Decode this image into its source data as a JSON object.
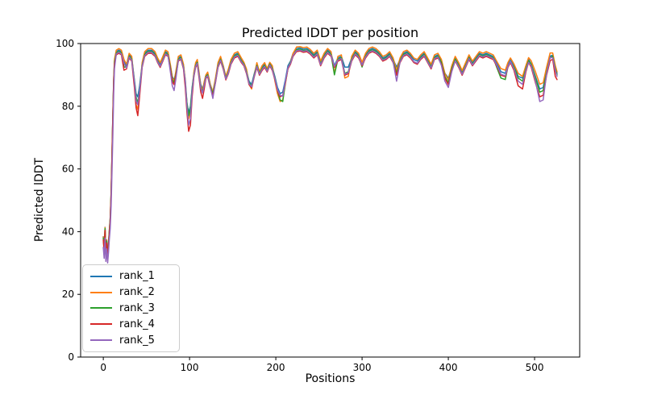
{
  "figure": {
    "title": "Predicted lDDT per position",
    "background_color": "#ffffff"
  },
  "chart_data": {
    "type": "line",
    "title": "Predicted lDDT per position",
    "xlabel": "Positions",
    "ylabel": "Predicted lDDT",
    "xlim": [
      -26.3,
      552.3
    ],
    "ylim": [
      0,
      100
    ],
    "xticks": [
      0,
      100,
      200,
      300,
      400,
      500
    ],
    "yticks": [
      0,
      20,
      40,
      60,
      80,
      100
    ],
    "grid": false,
    "legend_position": "lower left",
    "x": [
      0,
      1,
      2,
      3,
      4,
      5,
      6,
      7,
      8,
      9,
      10,
      11,
      12,
      13,
      15,
      18,
      21,
      24,
      27,
      30,
      33,
      36,
      38,
      40,
      42,
      45,
      48,
      52,
      56,
      60,
      63,
      66,
      69,
      72,
      75,
      78,
      80,
      82,
      84,
      87,
      90,
      93,
      95,
      97,
      99,
      101,
      103,
      105,
      107,
      109,
      111,
      113,
      115,
      117,
      119,
      121,
      124,
      127,
      130,
      133,
      136,
      139,
      142,
      145,
      148,
      152,
      156,
      160,
      163,
      166,
      169,
      172,
      175,
      178,
      181,
      184,
      187,
      190,
      193,
      196,
      199,
      202,
      205,
      208,
      211,
      214,
      217,
      220,
      224,
      228,
      232,
      236,
      240,
      244,
      248,
      252,
      256,
      260,
      264,
      268,
      272,
      276,
      280,
      284,
      288,
      292,
      296,
      300,
      304,
      308,
      312,
      316,
      320,
      324,
      328,
      332,
      336,
      340,
      344,
      348,
      352,
      356,
      360,
      364,
      368,
      372,
      376,
      380,
      384,
      388,
      392,
      396,
      400,
      404,
      408,
      412,
      416,
      420,
      424,
      428,
      432,
      436,
      440,
      444,
      448,
      452,
      456,
      461,
      466,
      469,
      472,
      476,
      481,
      486,
      490,
      493,
      496,
      501,
      506,
      510,
      514,
      518,
      521,
      524,
      526
    ],
    "series": [
      {
        "name": "rank_1",
        "color": "#1f77b4",
        "values": [
          38.4,
          34.4,
          41.4,
          33.4,
          37.4,
          32.4,
          36.4,
          40.4,
          44.4,
          52.4,
          63.4,
          76.4,
          88.4,
          94.4,
          97.4,
          97.9,
          97.4,
          94.4,
          92.9,
          96.4,
          95.4,
          88.4,
          84,
          83,
          86.4,
          93.4,
          96.9,
          97.9,
          97.9,
          96.9,
          94.9,
          93.4,
          95.4,
          97.4,
          96.9,
          92.4,
          89.4,
          88.4,
          90.4,
          95.4,
          95.9,
          92.9,
          88.5,
          81,
          78,
          80,
          86,
          90.5,
          93.4,
          94.4,
          90.4,
          87,
          85.5,
          87.4,
          89.9,
          90.4,
          87,
          84.5,
          88.4,
          93.4,
          95.4,
          92.9,
          89.4,
          91.4,
          94.4,
          96.4,
          96.9,
          94.9,
          93.9,
          91.4,
          88,
          87,
          90.4,
          93.4,
          90.9,
          92.4,
          93.4,
          91.9,
          93.9,
          92.4,
          89.4,
          86,
          84,
          84.5,
          88.4,
          92.9,
          94.4,
          96.9,
          98.4,
          98.6,
          98.2,
          98.4,
          97.6,
          96.4,
          97.4,
          93.9,
          96.4,
          97.9,
          96.9,
          92.9,
          95.4,
          95.9,
          92.5,
          92.5,
          95.4,
          97.4,
          96.4,
          93.9,
          96.4,
          97.9,
          98.4,
          97.9,
          96.9,
          95.4,
          95.9,
          96.9,
          94.9,
          92.5,
          94.9,
          96.9,
          97.4,
          96.4,
          94.9,
          94.4,
          95.9,
          96.9,
          94.9,
          92.9,
          95.9,
          96.4,
          94.4,
          90.5,
          89,
          92.4,
          95.4,
          93.4,
          90.9,
          93.4,
          95.9,
          93.9,
          95.4,
          96.9,
          96.4,
          96.9,
          96.4,
          95.9,
          93.9,
          91,
          90.5,
          93.4,
          94.9,
          93,
          89.5,
          89,
          92.5,
          95,
          93.5,
          89.5,
          85.5,
          86,
          91.5,
          96,
          96.3,
          92.5,
          90.5
        ]
      },
      {
        "name": "rank_2",
        "color": "#ff7f0e",
        "values": [
          38.3,
          34.3,
          41.3,
          33.3,
          37.3,
          32.3,
          36.3,
          40.3,
          44.3,
          52.3,
          63.5,
          76.5,
          88.5,
          94.9,
          97.9,
          98.4,
          97.9,
          94.9,
          93.4,
          96.9,
          95.9,
          87.5,
          80.5,
          79,
          84,
          93.9,
          97.4,
          98.4,
          98.4,
          97.4,
          95.4,
          93.9,
          95.9,
          97.9,
          97.4,
          92.9,
          89,
          88,
          90.9,
          95.9,
          96.4,
          93.4,
          88,
          80.5,
          76,
          78,
          85,
          90.9,
          93.9,
          94.9,
          90.9,
          86.5,
          85,
          87.9,
          90,
          90.9,
          87,
          84.5,
          88.9,
          93.9,
          95.9,
          93,
          89.5,
          91.9,
          94.9,
          96.9,
          97.4,
          95.4,
          94,
          91.9,
          87,
          85.5,
          90,
          93.9,
          91,
          92.9,
          93.9,
          92,
          94,
          92.9,
          88,
          84,
          81.5,
          82,
          87,
          92,
          94,
          96.9,
          98.9,
          99,
          98.7,
          98.9,
          98.1,
          96.9,
          97.9,
          94.4,
          96.9,
          98.4,
          97.4,
          90.5,
          95.9,
          96.4,
          89,
          89.5,
          95.9,
          97.9,
          96.9,
          94,
          96.9,
          98.4,
          98.9,
          98.4,
          97.4,
          95.9,
          96.4,
          97.4,
          95.4,
          91.4,
          95.4,
          97.4,
          97.9,
          96.9,
          95.4,
          94.9,
          96.4,
          97.4,
          95.4,
          93.4,
          96.4,
          96.9,
          94.9,
          90.4,
          88.4,
          92.9,
          95.9,
          93.9,
          91.4,
          93.9,
          96.4,
          94.4,
          95.9,
          97.4,
          96.9,
          97.4,
          96.9,
          96.4,
          94.4,
          92,
          91.5,
          93.9,
          95.4,
          93.5,
          90.5,
          89.5,
          93,
          95.5,
          94.5,
          91,
          87,
          87.5,
          92.5,
          97,
          97,
          93,
          91
        ]
      },
      {
        "name": "rank_3",
        "color": "#2ca02c",
        "values": [
          38,
          34,
          41,
          33,
          37,
          32,
          36,
          40,
          44,
          52,
          63,
          76,
          88,
          94,
          97,
          97.5,
          97,
          92.5,
          92.5,
          96,
          95,
          88,
          83,
          81,
          85,
          93,
          96.5,
          97.5,
          97.5,
          96.5,
          94.5,
          92.5,
          95,
          97,
          96.5,
          92,
          88.5,
          87.5,
          90,
          95,
          95.5,
          92.5,
          87,
          81,
          77,
          79,
          85.5,
          90,
          93,
          94,
          90,
          86,
          84.5,
          87,
          89.5,
          90,
          86.5,
          84,
          88,
          93,
          95,
          92.5,
          89,
          91,
          94,
          96,
          96.5,
          94.5,
          93.5,
          91,
          87.5,
          86.5,
          90,
          93,
          90.5,
          92,
          93,
          91.5,
          93.5,
          92,
          89,
          85,
          82,
          81.5,
          87.5,
          92,
          94,
          96,
          98,
          98.2,
          97.8,
          98,
          97.2,
          96,
          97,
          93.5,
          96,
          97.5,
          96.5,
          90,
          95,
          95.5,
          90.5,
          91,
          95,
          97,
          96,
          92.5,
          96,
          97.5,
          98,
          97.5,
          96.5,
          95,
          95.5,
          96.5,
          94.5,
          90.5,
          94.5,
          96.5,
          97,
          96,
          94,
          93.5,
          95.5,
          96.5,
          94.5,
          92.5,
          95.5,
          96,
          94,
          89.5,
          87.5,
          92,
          95,
          93,
          90.5,
          93,
          95.5,
          93.5,
          95,
          96.5,
          96,
          96.5,
          96,
          95.5,
          92.5,
          89,
          88.5,
          92.5,
          94,
          92.5,
          89,
          88,
          92,
          94.5,
          93.5,
          89,
          84.5,
          85,
          91,
          95.5,
          96,
          92,
          90
        ]
      },
      {
        "name": "rank_4",
        "color": "#d62728",
        "values": [
          37.4,
          33.4,
          40.4,
          32.4,
          36.4,
          31.4,
          35.4,
          39.4,
          43.4,
          51.4,
          62.4,
          75.4,
          87.4,
          93.4,
          96.4,
          96.9,
          96.4,
          91.5,
          91.9,
          95.4,
          94.4,
          86,
          79.5,
          77,
          83,
          92.4,
          95.9,
          96.9,
          96.9,
          95.9,
          93.9,
          92.4,
          94.4,
          96.4,
          95.9,
          91.4,
          87.9,
          86.9,
          89.4,
          94.4,
          94.9,
          91.9,
          86,
          78,
          72,
          74,
          83,
          89.4,
          92.4,
          93.4,
          89,
          84.5,
          82.5,
          85.5,
          88.9,
          89.4,
          85.9,
          83.4,
          87.4,
          92.4,
          94.4,
          91.9,
          88.4,
          90.4,
          93.4,
          95.4,
          95.9,
          93.9,
          92.9,
          90.4,
          86.9,
          85.9,
          89.4,
          92.4,
          89.9,
          91.4,
          92.4,
          90.9,
          92.9,
          91.4,
          88.4,
          84.9,
          83,
          83.5,
          87.4,
          91.9,
          93.4,
          95.9,
          97.4,
          97.6,
          97.2,
          97.4,
          96.6,
          95.4,
          96.4,
          92.9,
          95.4,
          96.9,
          95.9,
          92.4,
          94.4,
          94.9,
          89.9,
          90.4,
          94.4,
          96.4,
          95.4,
          92.9,
          95.4,
          96.9,
          97.4,
          96.9,
          95.9,
          94.4,
          94.9,
          95.9,
          93.9,
          89.9,
          93.9,
          95.9,
          96.4,
          95.4,
          93.9,
          93.4,
          94.9,
          95.9,
          93.9,
          91.9,
          94.9,
          95.4,
          93.4,
          88.9,
          86.9,
          91.4,
          94.4,
          92.4,
          89.9,
          92.4,
          94.9,
          92.9,
          94.4,
          95.9,
          95.4,
          95.9,
          95.4,
          94.9,
          92.9,
          89.9,
          89.4,
          92.4,
          93.9,
          91.5,
          86.5,
          85.5,
          91,
          94,
          92.5,
          87.5,
          83,
          83.5,
          90,
          94.5,
          95,
          89.5,
          88.5
        ]
      },
      {
        "name": "rank_5",
        "color": "#9467bd",
        "values": [
          35,
          31.5,
          38,
          30.5,
          34.5,
          30,
          33.5,
          37.5,
          41,
          48,
          58,
          70,
          84,
          92,
          96.7,
          97.2,
          96.7,
          93.7,
          92.2,
          95.7,
          94.7,
          87.7,
          81.7,
          80.5,
          84.7,
          92.7,
          96.2,
          97.2,
          97.2,
          96.2,
          94.2,
          92.7,
          94.7,
          96.7,
          96.2,
          90.5,
          86.5,
          85,
          88.5,
          94.7,
          95.2,
          92.2,
          87.7,
          79.7,
          74,
          76,
          84.7,
          89.7,
          92.7,
          93.7,
          89.7,
          85.7,
          84.2,
          86.7,
          89.2,
          89.7,
          86.2,
          82.5,
          87.7,
          92.7,
          94.7,
          92.2,
          88.7,
          90.7,
          93.7,
          95.7,
          96.2,
          94.2,
          93.2,
          90.7,
          87.2,
          86.2,
          89.7,
          92.7,
          90.2,
          91.7,
          92.7,
          91.2,
          93.2,
          91.7,
          88.7,
          85.2,
          83.5,
          83.2,
          87.7,
          92.2,
          93.7,
          96.2,
          97.7,
          97.9,
          97.5,
          97.7,
          96.9,
          95.7,
          96.7,
          93.2,
          95.7,
          97.2,
          96.2,
          92.7,
          94.7,
          95.2,
          90.2,
          90.7,
          94.7,
          96.7,
          95.7,
          93.2,
          95.7,
          97.2,
          97.7,
          97.2,
          96.2,
          94.7,
          95.2,
          96.2,
          94.2,
          88,
          94.2,
          96.2,
          96.7,
          95.7,
          94.2,
          93.7,
          95.2,
          96.2,
          94.2,
          92.2,
          95.2,
          95.7,
          93,
          88,
          86,
          91,
          94.5,
          92.7,
          90.2,
          92.7,
          95.2,
          93.2,
          94.7,
          96.2,
          95.7,
          96.2,
          95.7,
          95.2,
          93.2,
          90.2,
          89.7,
          92.7,
          94.2,
          92,
          88,
          87,
          91.5,
          94,
          93,
          88,
          81.5,
          82,
          90.5,
          95.5,
          95.5,
          91.5,
          89.5
        ]
      }
    ]
  }
}
